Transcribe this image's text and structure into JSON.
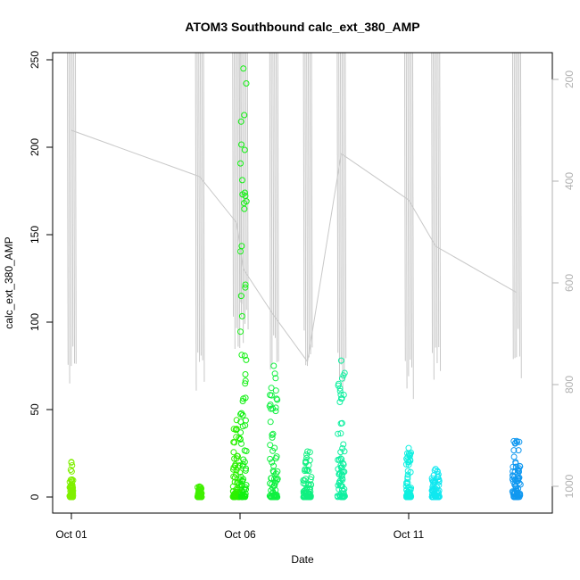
{
  "chart_data": {
    "type": "scatter",
    "title": "ATOM3 Southbound calc_ext_380_AMP",
    "xlabel": "Date",
    "ylabel": "calc_ext_380_AMP",
    "x_ticks": [
      "Oct 01",
      "Oct 06",
      "Oct 11"
    ],
    "y_ticks": [
      "0",
      "50",
      "100",
      "150",
      "200",
      "250"
    ],
    "secondary_y_ticks": [
      "200",
      "400",
      "600",
      "800",
      "1000"
    ],
    "ylim": [
      0,
      255
    ],
    "xlim": [
      "Sep 30 18:00",
      "Oct 15 09:00"
    ],
    "secondary_ylim_reversed": [
      150,
      1050
    ],
    "colors": {
      "axis": "#000000",
      "secondary_axis": "#b0b0b0",
      "depth_line": "#c8c8c8"
    },
    "clusters": [
      {
        "day": 1.0,
        "width": 0.1,
        "low": 0,
        "high": 20,
        "color": "#80f000"
      },
      {
        "day": 4.8,
        "width": 0.12,
        "low": 0,
        "high": 6,
        "color": "#40f000"
      },
      {
        "day": 5.9,
        "width": 0.22,
        "low": 0,
        "high": 44,
        "color": "#2cf000"
      },
      {
        "day": 6.1,
        "width": 0.18,
        "low": 0,
        "high": 245,
        "color": "#10f010"
      },
      {
        "day": 7.0,
        "width": 0.25,
        "low": 0,
        "high": 75,
        "color": "#10f040"
      },
      {
        "day": 8.0,
        "width": 0.25,
        "low": 0,
        "high": 26,
        "color": "#10f080"
      },
      {
        "day": 9.0,
        "width": 0.22,
        "low": 0,
        "high": 78,
        "color": "#10f0a0"
      },
      {
        "day": 11.0,
        "width": 0.15,
        "low": 0,
        "high": 28,
        "color": "#10f0e0"
      },
      {
        "day": 11.8,
        "width": 0.22,
        "low": 0,
        "high": 16,
        "color": "#10e8f0"
      },
      {
        "day": 14.2,
        "width": 0.25,
        "low": 0,
        "high": 32,
        "color": "#1098f0"
      }
    ],
    "depth_profiles": [
      {
        "day": 1.0,
        "bottom": 830
      },
      {
        "day": 4.8,
        "bottom": 830
      },
      {
        "day": 5.9,
        "bottom": 750
      },
      {
        "day": 6.1,
        "bottom": 730
      },
      {
        "day": 7.0,
        "bottom": 800
      },
      {
        "day": 8.0,
        "bottom": 780
      },
      {
        "day": 9.0,
        "bottom": 840
      },
      {
        "day": 11.0,
        "bottom": 840
      },
      {
        "day": 11.8,
        "bottom": 800
      },
      {
        "day": 14.2,
        "bottom": 790
      }
    ]
  }
}
